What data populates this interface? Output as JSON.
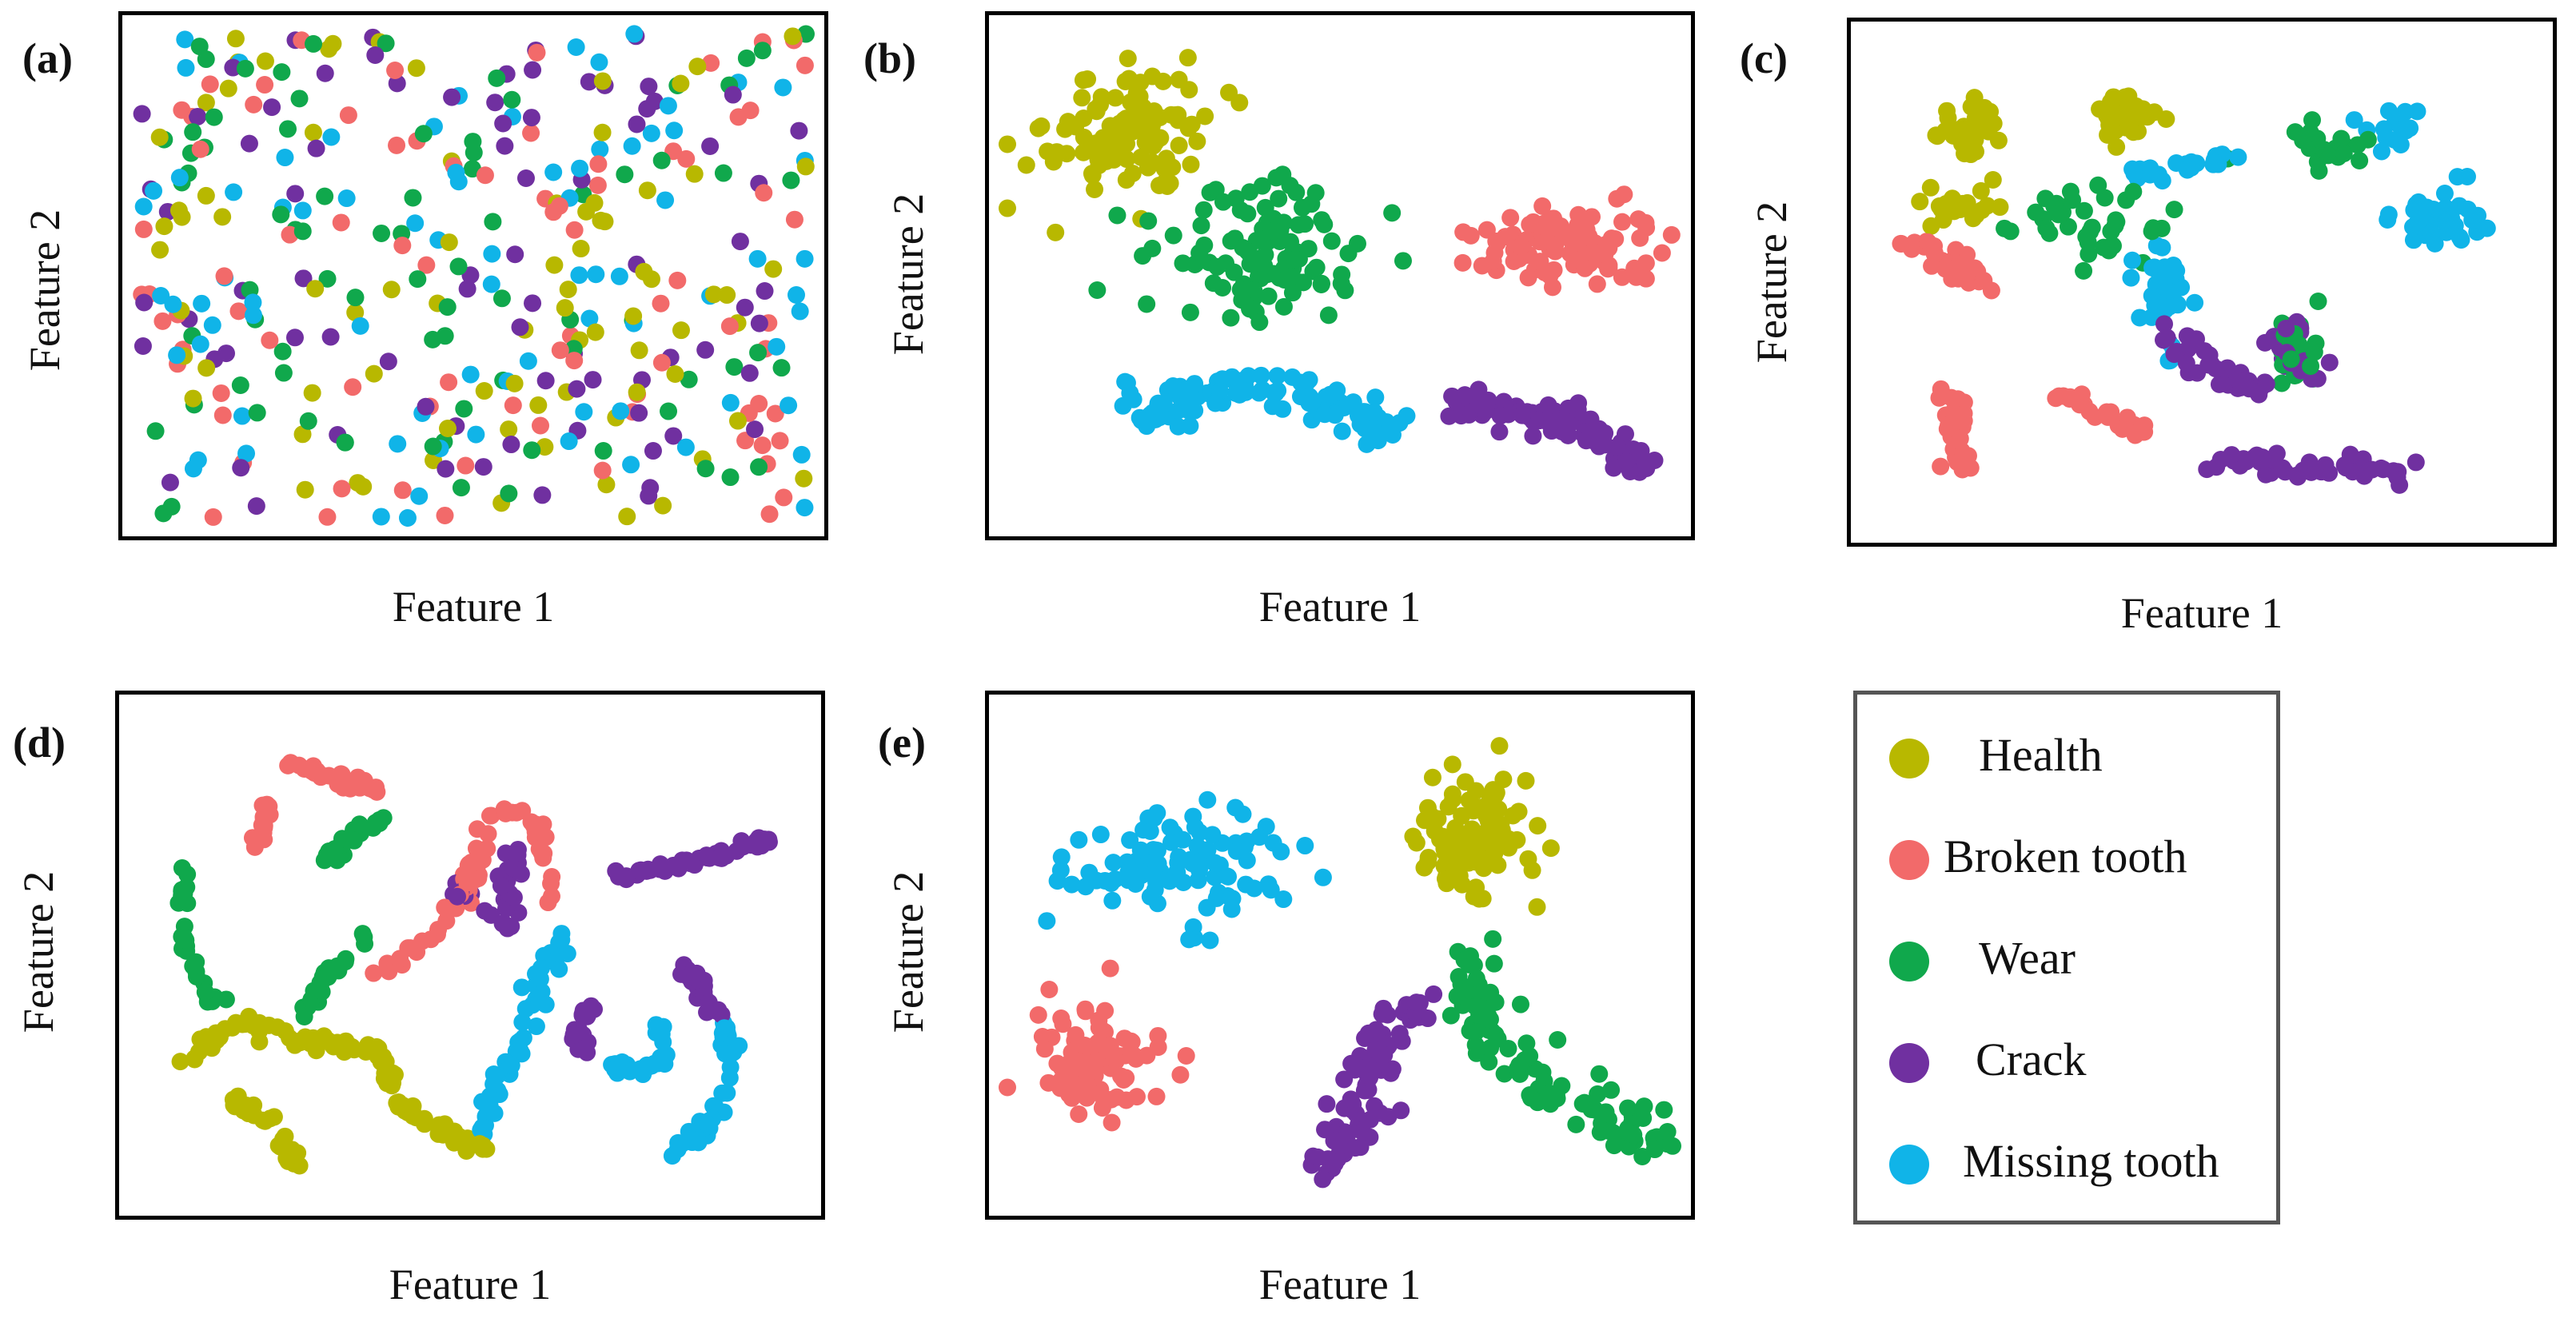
{
  "legend": {
    "items": [
      {
        "label": "Health",
        "color": "#b8b800"
      },
      {
        "label": "Broken tooth",
        "color": "#f26a6a"
      },
      {
        "label": "Wear",
        "color": "#10a84c"
      },
      {
        "label": "Crack",
        "color": "#7030a0"
      },
      {
        "label": "Missing tooth",
        "color": "#10b4e8"
      }
    ]
  },
  "chart_data": [
    {
      "panel": "(a)",
      "type": "scatter",
      "xlabel": "Feature 1",
      "ylabel": "Feature 2",
      "xlim": [
        0,
        100
      ],
      "ylim": [
        0,
        100
      ],
      "layout": "random-mixed",
      "series": [
        {
          "name": "Health",
          "color": "#b8b800",
          "clusters": [
            {
              "cx": 50,
              "cy": 50,
              "sx": 30,
              "sy": 28,
              "n": 80
            }
          ]
        },
        {
          "name": "Broken tooth",
          "color": "#f26a6a",
          "clusters": [
            {
              "cx": 50,
              "cy": 50,
              "sx": 30,
              "sy": 28,
              "n": 80
            }
          ]
        },
        {
          "name": "Wear",
          "color": "#10a84c",
          "clusters": [
            {
              "cx": 50,
              "cy": 50,
              "sx": 30,
              "sy": 28,
              "n": 80
            }
          ]
        },
        {
          "name": "Crack",
          "color": "#7030a0",
          "clusters": [
            {
              "cx": 50,
              "cy": 50,
              "sx": 30,
              "sy": 28,
              "n": 80
            }
          ]
        },
        {
          "name": "Missing tooth",
          "color": "#10b4e8",
          "clusters": [
            {
              "cx": 50,
              "cy": 50,
              "sx": 30,
              "sy": 28,
              "n": 80
            }
          ]
        }
      ]
    },
    {
      "panel": "(b)",
      "type": "scatter",
      "xlabel": "Feature 1",
      "ylabel": "Feature 2",
      "xlim": [
        0,
        100
      ],
      "ylim": [
        0,
        100
      ],
      "series": [
        {
          "name": "Health",
          "color": "#b8b800",
          "clusters": [
            {
              "cx": 18,
              "cy": 80,
              "sx": 6,
              "sy": 7,
              "n": 110
            }
          ]
        },
        {
          "name": "Broken tooth",
          "color": "#f26a6a",
          "clusters": [
            {
              "cx": 84,
              "cy": 56,
              "sx": 7,
              "sy": 4,
              "n": 110
            }
          ]
        },
        {
          "name": "Wear",
          "color": "#10a84c",
          "clusters": [
            {
              "cx": 38,
              "cy": 55,
              "sx": 8,
              "sy": 8,
              "n": 110
            }
          ]
        },
        {
          "name": "Crack",
          "color": "#7030a0",
          "path": [
            [
              66,
              24
            ],
            [
              76,
              22
            ],
            [
              84,
              20
            ],
            [
              90,
              16
            ],
            [
              96,
              10
            ]
          ],
          "spread": 1.5,
          "n": 100
        },
        {
          "name": "Missing tooth",
          "color": "#10b4e8",
          "path": [
            [
              15,
              22
            ],
            [
              28,
              25
            ],
            [
              42,
              28
            ],
            [
              52,
              22
            ],
            [
              58,
              18
            ]
          ],
          "spread": 2.2,
          "n": 110
        }
      ]
    },
    {
      "panel": "(c)",
      "type": "scatter",
      "xlabel": "Feature 1",
      "ylabel": "Feature 2",
      "xlim": [
        0,
        100
      ],
      "ylim": [
        0,
        100
      ],
      "series": [
        {
          "name": "Health",
          "color": "#b8b800",
          "clusters": [
            {
              "cx": 16,
              "cy": 82,
              "sx": 3,
              "sy": 3,
              "n": 45
            },
            {
              "cx": 13,
              "cy": 66,
              "sx": 3,
              "sy": 2,
              "n": 25
            },
            {
              "cx": 38,
              "cy": 83,
              "sx": 3,
              "sy": 3,
              "n": 30
            }
          ]
        },
        {
          "name": "Broken tooth",
          "color": "#f26a6a",
          "path": [
            [
              5,
              60
            ],
            [
              14,
              52
            ],
            [
              17,
              48
            ]
          ],
          "spread": 1.3,
          "n": 35,
          "extra_paths": [
            {
              "path": [
                [
                  12,
                  28
                ],
                [
                  13,
                  18
                ],
                [
                  14,
                  12
                ]
              ],
              "spread": 1,
              "n": 30
            },
            {
              "path": [
                [
                  28,
                  28
                ],
                [
                  36,
                  22
                ],
                [
                  42,
                  18
                ]
              ],
              "spread": 1,
              "n": 30
            }
          ]
        },
        {
          "name": "Wear",
          "color": "#10a84c",
          "clusters": [
            {
              "cx": 34,
              "cy": 62,
              "sx": 5,
              "sy": 4,
              "n": 40
            },
            {
              "cx": 68,
              "cy": 77,
              "sx": 4,
              "sy": 3,
              "n": 20
            },
            {
              "cx": 65,
              "cy": 36,
              "sx": 2,
              "sy": 4,
              "n": 25
            }
          ]
        },
        {
          "name": "Crack",
          "color": "#7030a0",
          "path": [
            [
              45,
              40
            ],
            [
              52,
              32
            ],
            [
              58,
              28
            ]
          ],
          "spread": 1.5,
          "n": 40,
          "extra_paths": [
            {
              "path": [
                [
                  64,
                  42
                ],
                [
                  62,
                  36
                ],
                [
                  66,
                  32
                ],
                [
                  68,
                  30
                ]
              ],
              "spread": 1.2,
              "n": 25
            },
            {
              "path": [
                [
                  52,
                  14
                ],
                [
                  62,
                  12
                ],
                [
                  72,
                  12
                ],
                [
                  80,
                  10
                ]
              ],
              "spread": 1.2,
              "n": 45
            }
          ]
        },
        {
          "name": "Missing tooth",
          "color": "#10b4e8",
          "clusters": [
            {
              "cx": 85,
              "cy": 62,
              "sx": 4,
              "sy": 3,
              "n": 35
            },
            {
              "cx": 44,
              "cy": 47,
              "sx": 2,
              "sy": 6,
              "n": 35
            },
            {
              "cx": 78,
              "cy": 82,
              "sx": 2,
              "sy": 3,
              "n": 15
            }
          ],
          "extra_paths": [
            {
              "path": [
                [
                  38,
                  72
                ],
                [
                  48,
                  74
                ],
                [
                  55,
                  76
                ]
              ],
              "spread": 1,
              "n": 25
            }
          ]
        }
      ]
    },
    {
      "panel": "(d)",
      "type": "scatter",
      "xlabel": "Feature 1",
      "ylabel": "Feature 2",
      "xlim": [
        0,
        100
      ],
      "ylim": [
        0,
        100
      ],
      "series": [
        {
          "name": "Health",
          "color": "#b8b800",
          "path": [
            [
              7,
              28
            ],
            [
              14,
              36
            ],
            [
              26,
              32
            ],
            [
              36,
              30
            ],
            [
              40,
              18
            ],
            [
              52,
              10
            ]
          ],
          "spread": 0.8,
          "n": 110,
          "extra_paths": [
            {
              "path": [
                [
                  14,
                  20
                ],
                [
                  20,
                  16
                ],
                [
                  24,
                  6
                ]
              ],
              "spread": 0.6,
              "n": 30
            }
          ]
        },
        {
          "name": "Broken tooth",
          "color": "#f26a6a",
          "path": [
            [
              22,
              90
            ],
            [
              30,
              86
            ],
            [
              36,
              84
            ]
          ],
          "spread": 0.7,
          "n": 35,
          "extra_paths": [
            {
              "path": [
                [
                  20,
                  82
                ],
                [
                  18,
                  72
                ]
              ],
              "spread": 0.5,
              "n": 15
            },
            {
              "path": [
                [
                  36,
                  46
                ],
                [
                  44,
                  54
                ],
                [
                  50,
                  64
                ],
                [
                  52,
                  76
                ],
                [
                  56,
                  80
                ],
                [
                  60,
                  76
                ],
                [
                  62,
                  60
                ]
              ],
              "spread": 0.8,
              "n": 60
            }
          ]
        },
        {
          "name": "Wear",
          "color": "#10a84c",
          "path": [
            [
              7,
              68
            ],
            [
              7,
              50
            ],
            [
              12,
              40
            ]
          ],
          "spread": 0.6,
          "n": 30,
          "extra_paths": [
            {
              "path": [
                [
                  28,
                  70
                ],
                [
                  36,
                  78
                ]
              ],
              "spread": 0.6,
              "n": 20
            },
            {
              "path": [
                [
                  25,
                  38
                ],
                [
                  30,
                  48
                ],
                [
                  35,
                  54
                ]
              ],
              "spread": 0.6,
              "n": 25
            }
          ]
        },
        {
          "name": "Crack",
          "color": "#7030a0",
          "path": [
            [
              48,
              64
            ],
            [
              55,
              56
            ],
            [
              57,
              72
            ]
          ],
          "spread": 0.8,
          "n": 35,
          "extra_paths": [
            {
              "path": [
                [
                  72,
                  66
                ],
                [
                  85,
                  70
                ],
                [
                  96,
                  74
                ]
              ],
              "spread": 0.6,
              "n": 45
            },
            {
              "path": [
                [
                  68,
                  40
                ],
                [
                  66,
                  34
                ],
                [
                  68,
                  28
                ]
              ],
              "spread": 0.6,
              "n": 20
            },
            {
              "path": [
                [
                  82,
                  48
                ],
                [
                  86,
                  40
                ],
                [
                  88,
                  36
                ]
              ],
              "spread": 0.6,
              "n": 20
            }
          ]
        },
        {
          "name": "Missing tooth",
          "color": "#10b4e8",
          "path": [
            [
              64,
              54
            ],
            [
              58,
              36
            ],
            [
              54,
              22
            ],
            [
              52,
              14
            ]
          ],
          "spread": 0.8,
          "n": 50,
          "extra_paths": [
            {
              "path": [
                [
                  70,
                  28
                ],
                [
                  76,
                  26
                ],
                [
                  80,
                  30
                ],
                [
                  78,
                  36
                ]
              ],
              "spread": 0.7,
              "n": 30
            },
            {
              "path": [
                [
                  88,
                  36
                ],
                [
                  90,
                  24
                ],
                [
                  86,
                  16
                ],
                [
                  80,
                  8
                ]
              ],
              "spread": 0.7,
              "n": 40
            }
          ]
        }
      ]
    },
    {
      "panel": "(e)",
      "type": "scatter",
      "xlabel": "Feature 1",
      "ylabel": "Feature 2",
      "xlim": [
        0,
        100
      ],
      "ylim": [
        0,
        100
      ],
      "series": [
        {
          "name": "Health",
          "color": "#b8b800",
          "clusters": [
            {
              "cx": 70,
              "cy": 75,
              "sx": 4,
              "sy": 7,
              "n": 100
            }
          ]
        },
        {
          "name": "Broken tooth",
          "color": "#f26a6a",
          "clusters": [
            {
              "cx": 13,
              "cy": 28,
              "sx": 5,
              "sy": 6,
              "n": 100
            }
          ]
        },
        {
          "name": "Wear",
          "color": "#10a84c",
          "path": [
            [
              72,
              52
            ],
            [
              70,
              38
            ],
            [
              78,
              24
            ],
            [
              90,
              18
            ],
            [
              98,
              10
            ]
          ],
          "spread": 2.5,
          "n": 100
        },
        {
          "name": "Crack",
          "color": "#7030a0",
          "path": [
            [
              62,
              42
            ],
            [
              56,
              30
            ],
            [
              52,
              16
            ],
            [
              48,
              6
            ]
          ],
          "spread": 2.2,
          "n": 90
        },
        {
          "name": "Missing tooth",
          "color": "#10b4e8",
          "clusters": [
            {
              "cx": 26,
              "cy": 68,
              "sx": 8,
              "sy": 6,
              "n": 100
            }
          ]
        }
      ]
    }
  ]
}
